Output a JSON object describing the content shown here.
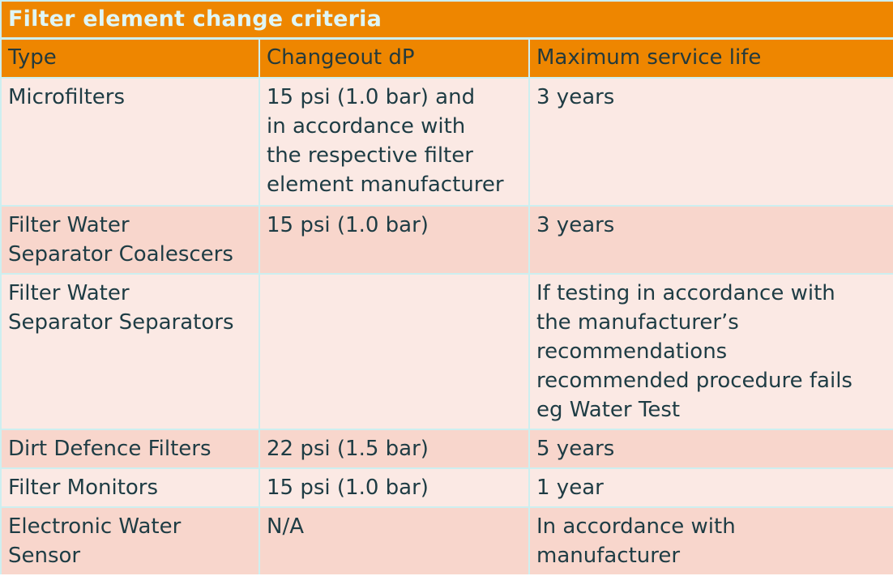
{
  "title": "Filter element change criteria",
  "headers": [
    "Type",
    "Changeout dP",
    "Maximum service life"
  ],
  "rows": [
    {
      "type": [
        "Microfilters"
      ],
      "dp": [
        "15 psi (1.0 bar) and",
        "in accordance with",
        "the respective filter",
        "element manufacturer"
      ],
      "life": [
        "3 years"
      ]
    },
    {
      "type": [
        "Filter Water",
        "Separator Coalescers"
      ],
      "dp": [
        "15 psi (1.0 bar)"
      ],
      "life": [
        "3 years"
      ]
    },
    {
      "type": [
        "Filter Water",
        "Separator Separators"
      ],
      "dp": [],
      "life": [
        "If testing in accordance with",
        "the manufacturer’s",
        "recommendations",
        "recommended procedure fails",
        "eg Water Test"
      ]
    },
    {
      "type": [
        "Dirt Defence Filters"
      ],
      "dp": [
        "22 psi (1.5 bar)"
      ],
      "life": [
        "5 years"
      ]
    },
    {
      "type": [
        "Filter Monitors"
      ],
      "dp": [
        "15 psi (1.0 bar)"
      ],
      "life": [
        "1 year"
      ]
    },
    {
      "type": [
        "Electronic Water",
        "Sensor"
      ],
      "dp": [
        "N/A"
      ],
      "life": [
        "In accordance with",
        "manufacturer"
      ]
    }
  ]
}
